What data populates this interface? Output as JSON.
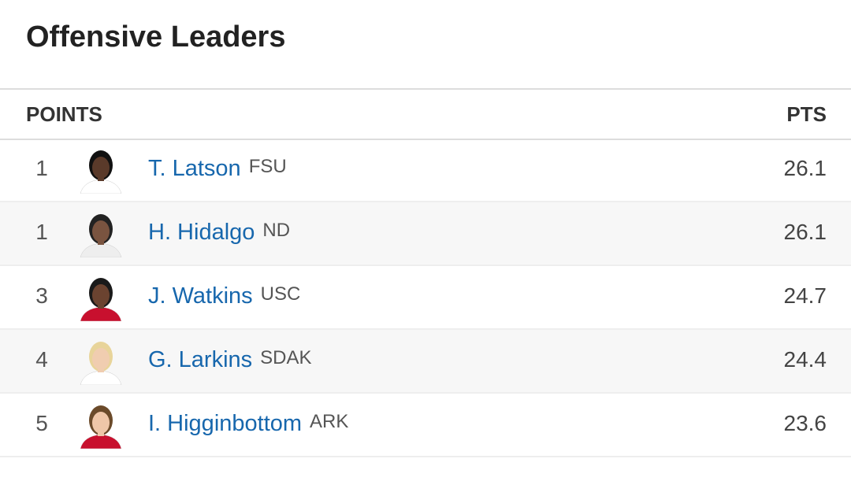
{
  "header": {
    "title": "Offensive Leaders"
  },
  "table": {
    "columns": [
      "POINTS",
      "PTS"
    ],
    "rows": [
      {
        "rank": 1,
        "name": "T. Latson",
        "team": "FSU",
        "pts": 26.1
      },
      {
        "rank": 1,
        "name": "H. Hidalgo",
        "team": "ND",
        "pts": 26.1
      },
      {
        "rank": 3,
        "name": "J. Watkins",
        "team": "USC",
        "pts": 24.7
      },
      {
        "rank": 4,
        "name": "G. Larkins",
        "team": "SDAK",
        "pts": 24.4
      },
      {
        "rank": 5,
        "name": "I. Higginbottom",
        "team": "ARK",
        "pts": 23.6
      }
    ]
  }
}
